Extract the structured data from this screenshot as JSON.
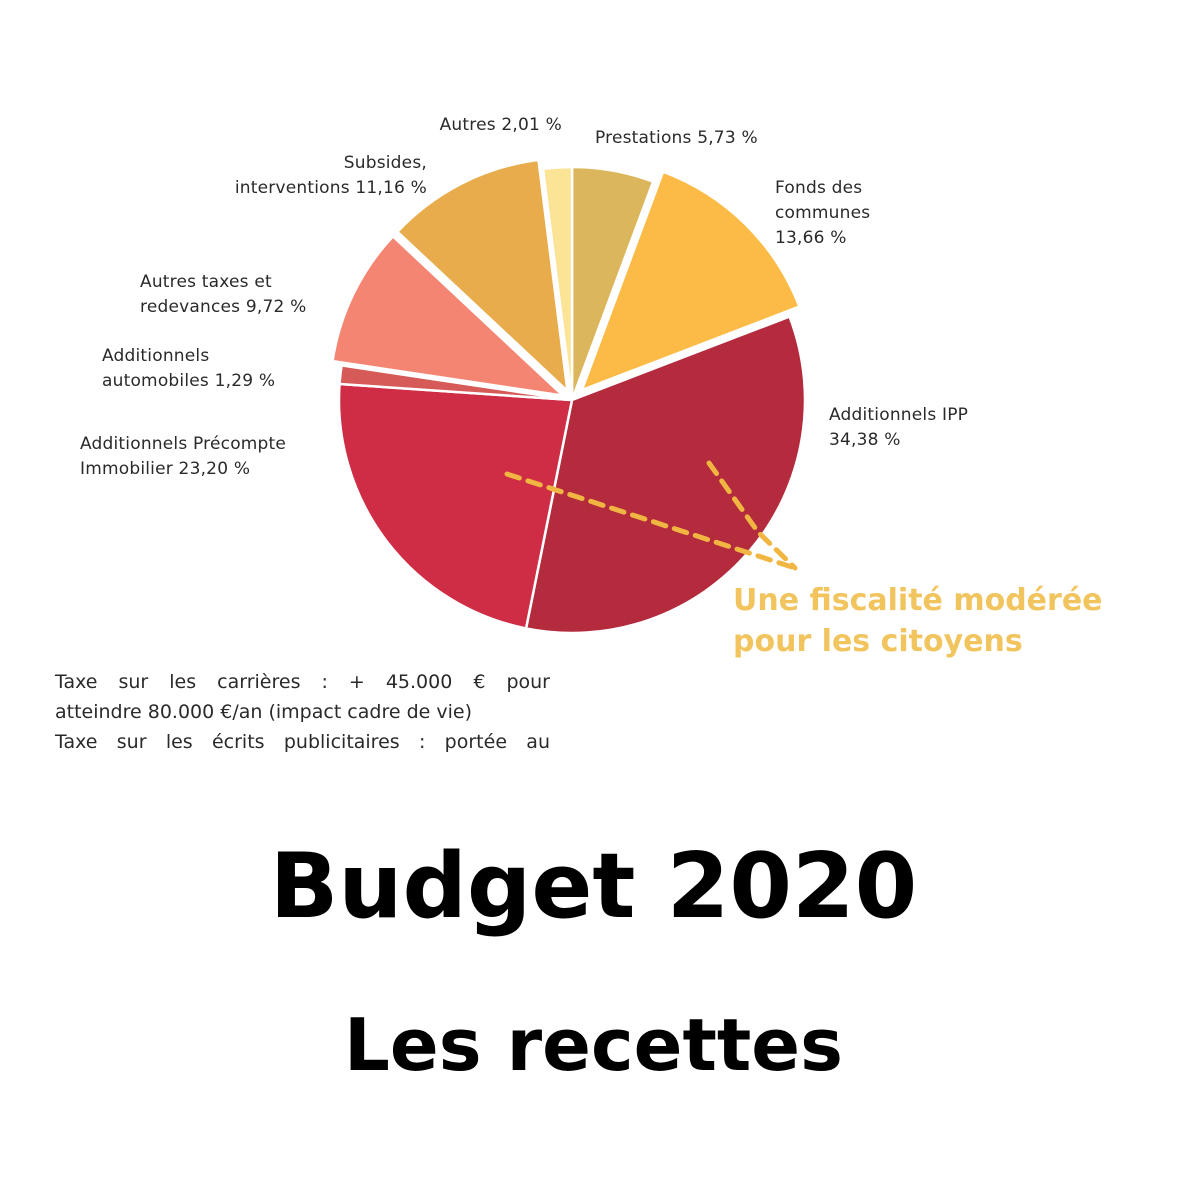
{
  "chart_data": {
    "type": "pie",
    "slices": [
      {
        "label": "Prestations 5,73 %",
        "value": 5.73,
        "color": "#dcb65c"
      },
      {
        "label": "Fonds des\ncommunes\n13,66 %",
        "value": 13.66,
        "color": "#fbbb46"
      },
      {
        "label": "Additionnels IPP\n34,38 %",
        "value": 34.38,
        "color": "#b32b3c"
      },
      {
        "label": "Additionnels Précompte\nImmobilier 23,20 %",
        "value": 23.2,
        "color": "#cf2d45"
      },
      {
        "label": "Additionnels\nautomobiles 1,29 %",
        "value": 1.29,
        "color": "#d65a58"
      },
      {
        "label": "Autres taxes et\nredevances 9,72 %",
        "value": 9.72,
        "color": "#f48572"
      },
      {
        "label": "Subsides,\ninterventions 11,16 %",
        "value": 11.16,
        "color": "#e8ac4c"
      },
      {
        "label": "Autres 2,01 %",
        "value": 2.01,
        "color": "#fbe496"
      }
    ],
    "annotation": "Une fiscalité modérée\npour les citoyens",
    "annotation_color": "#f1c45e"
  },
  "footnote": {
    "line1": "Taxe sur les carrières : + 45.000 € pour",
    "line2": "atteindre 80.000 €/an (impact cadre de vie)",
    "line3": "Taxe sur les écrits publicitaires : portée au"
  },
  "title": "Budget 2020",
  "subtitle": "Les recettes"
}
